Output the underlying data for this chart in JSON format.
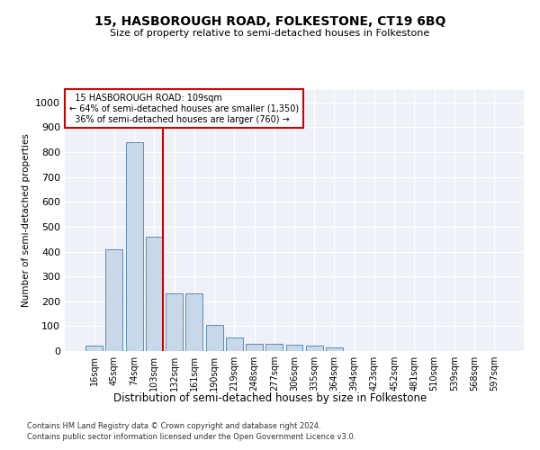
{
  "title": "15, HASBOROUGH ROAD, FOLKESTONE, CT19 6BQ",
  "subtitle": "Size of property relative to semi-detached houses in Folkestone",
  "xlabel": "Distribution of semi-detached houses by size in Folkestone",
  "ylabel": "Number of semi-detached properties",
  "bar_color": "#c8d8e8",
  "bar_edge_color": "#5b8db8",
  "background_color": "#eef2f8",
  "grid_color": "#ffffff",
  "annotation_box_color": "#cc0000",
  "property_line_color": "#cc0000",
  "property_label": "15 HASBOROUGH ROAD: 109sqm",
  "smaller_pct": 64,
  "smaller_count": 1350,
  "larger_pct": 36,
  "larger_count": 760,
  "categories": [
    "16sqm",
    "45sqm",
    "74sqm",
    "103sqm",
    "132sqm",
    "161sqm",
    "190sqm",
    "219sqm",
    "248sqm",
    "277sqm",
    "306sqm",
    "335sqm",
    "364sqm",
    "394sqm",
    "423sqm",
    "452sqm",
    "481sqm",
    "510sqm",
    "539sqm",
    "568sqm",
    "597sqm"
  ],
  "values": [
    20,
    410,
    840,
    460,
    230,
    230,
    105,
    55,
    30,
    30,
    25,
    20,
    15,
    0,
    0,
    0,
    0,
    0,
    0,
    0,
    0
  ],
  "property_line_x": 3.42,
  "ylim": [
    0,
    1050
  ],
  "yticks": [
    0,
    100,
    200,
    300,
    400,
    500,
    600,
    700,
    800,
    900,
    1000
  ],
  "footnote1": "Contains HM Land Registry data © Crown copyright and database right 2024.",
  "footnote2": "Contains public sector information licensed under the Open Government Licence v3.0."
}
